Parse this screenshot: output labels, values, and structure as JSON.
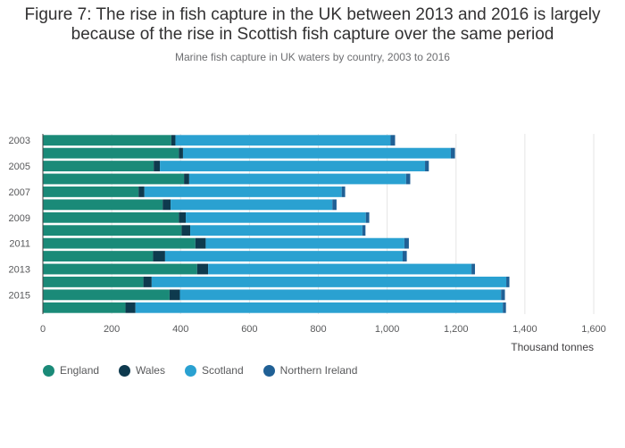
{
  "title_line1": "Figure 7: The rise in fish capture in the UK between 2013 and 2016 is largely",
  "title_line2": "because of the rise in Scottish fish capture over the same period",
  "subtitle": "Marine fish capture in UK waters by country, 2003 to 2016",
  "chart_data": {
    "type": "bar",
    "orientation": "horizontal",
    "stacked": true,
    "categories": [
      "2003",
      "2004",
      "2005",
      "2006",
      "2007",
      "2008",
      "2009",
      "2010",
      "2011",
      "2012",
      "2013",
      "2014",
      "2015",
      "2016"
    ],
    "category_tick_labels": [
      "2003",
      "2005",
      "2007",
      "2009",
      "2011",
      "2013",
      "2015"
    ],
    "series": [
      {
        "name": "England",
        "color": "#1a8a78",
        "values": [
          373,
          395,
          322,
          410,
          278,
          348,
          395,
          403,
          443,
          320,
          448,
          292,
          368,
          240
        ]
      },
      {
        "name": "Wales",
        "color": "#0e3a4e",
        "values": [
          12,
          12,
          18,
          15,
          17,
          23,
          20,
          25,
          30,
          35,
          32,
          24,
          30,
          29
        ]
      },
      {
        "name": "Scotland",
        "color": "#2aa1d1",
        "values": [
          625,
          778,
          770,
          630,
          573,
          470,
          523,
          500,
          577,
          690,
          765,
          1030,
          933,
          1067
        ]
      },
      {
        "name": "Northern Ireland",
        "color": "#206095",
        "values": [
          13,
          12,
          11,
          12,
          10,
          12,
          10,
          9,
          13,
          12,
          10,
          9,
          11,
          9
        ]
      }
    ],
    "xlim": [
      0,
      1600
    ],
    "xticks": [
      0,
      200,
      400,
      600,
      800,
      1000,
      1200,
      1400,
      1600
    ],
    "xtick_labels": [
      "0",
      "200",
      "400",
      "600",
      "800",
      "1,000",
      "1,200",
      "1,400",
      "1,600"
    ],
    "xlabel": "Thousand tonnes",
    "ylabel": "",
    "grid": true,
    "legend": "bottom-left"
  }
}
